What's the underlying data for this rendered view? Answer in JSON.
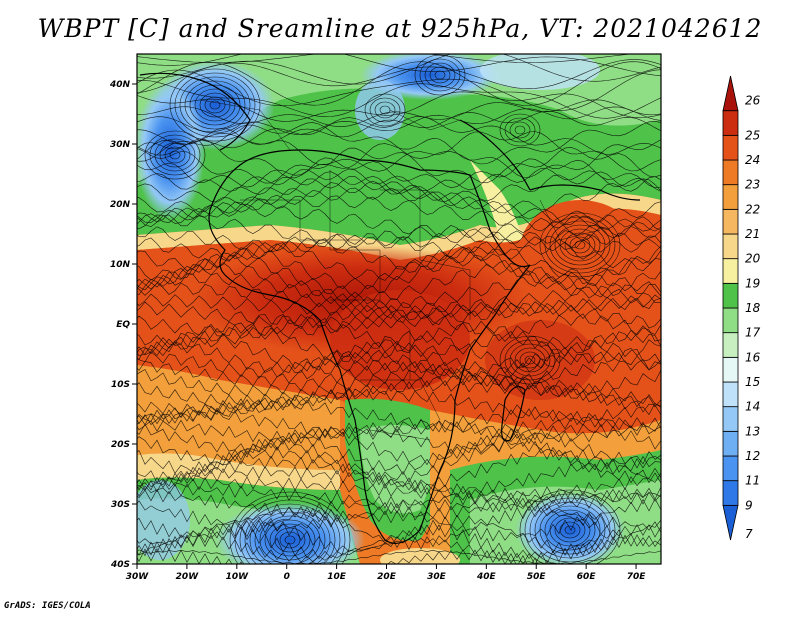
{
  "title": "WBPT [C] and Sreamline at 925hPa, VT: 2021042612",
  "credit": "GrADS: IGES/COLA",
  "map": {
    "lon_range": [
      -30,
      75
    ],
    "lat_range": [
      -40,
      45
    ],
    "x_ticks": [
      {
        "lon": -30,
        "label": "30W"
      },
      {
        "lon": -20,
        "label": "20W"
      },
      {
        "lon": -10,
        "label": "10W"
      },
      {
        "lon": 0,
        "label": "0"
      },
      {
        "lon": 10,
        "label": "10E"
      },
      {
        "lon": 20,
        "label": "20E"
      },
      {
        "lon": 30,
        "label": "30E"
      },
      {
        "lon": 40,
        "label": "40E"
      },
      {
        "lon": 50,
        "label": "50E"
      },
      {
        "lon": 60,
        "label": "60E"
      },
      {
        "lon": 70,
        "label": "70E"
      }
    ],
    "y_ticks": [
      {
        "lat": 40,
        "label": "40N"
      },
      {
        "lat": 30,
        "label": "30N"
      },
      {
        "lat": 20,
        "label": "20N"
      },
      {
        "lat": 10,
        "label": "10N"
      },
      {
        "lat": 0,
        "label": "EQ"
      },
      {
        "lat": -10,
        "label": "10S"
      },
      {
        "lat": -20,
        "label": "20S"
      },
      {
        "lat": -30,
        "label": "30S"
      },
      {
        "lat": -40,
        "label": "40S"
      }
    ]
  },
  "colorbar": {
    "levels": [
      "7",
      "9",
      "11",
      "12",
      "13",
      "14",
      "15",
      "16",
      "17",
      "18",
      "19",
      "20",
      "21",
      "22",
      "23",
      "24",
      "25",
      "26"
    ],
    "colors": [
      "#1a5fd6",
      "#2f78e8",
      "#4b93f0",
      "#6eaef3",
      "#94c8f6",
      "#bfe2fa",
      "#e6f8f6",
      "#c8efc0",
      "#8fdd85",
      "#4fc24a",
      "#f6f0a0",
      "#f7d88a",
      "#f5b860",
      "#f29f3c",
      "#ee7a25",
      "#e4521a",
      "#cc2d10",
      "#a8120a"
    ]
  }
}
